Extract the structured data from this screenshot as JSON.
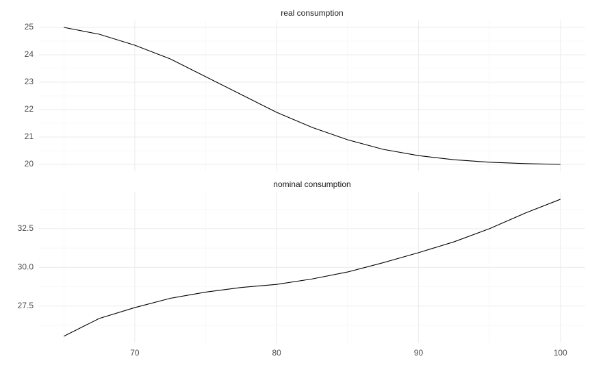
{
  "chart_data": [
    {
      "type": "line",
      "title": "real consumption",
      "x": [
        65,
        67.5,
        70,
        72.5,
        75,
        77.5,
        80,
        82.5,
        85,
        87.5,
        90,
        92.5,
        95,
        97.5,
        100
      ],
      "series": [
        {
          "color": "#000000",
          "values": [
            25.0,
            24.75,
            24.35,
            23.85,
            23.2,
            22.55,
            21.9,
            21.35,
            20.9,
            20.55,
            20.32,
            20.17,
            20.08,
            20.03,
            20.0
          ]
        }
      ],
      "xlim": [
        63.25,
        101.75
      ],
      "xticks": [
        70,
        80,
        90,
        100
      ],
      "xminor": [
        65,
        75,
        85,
        95
      ],
      "ylim": [
        19.75,
        25.25
      ],
      "yticks": [
        20,
        21,
        22,
        23,
        24,
        25
      ],
      "yminor": [
        20.5,
        21.5,
        22.5,
        23.5,
        24.5
      ],
      "grid": true
    },
    {
      "type": "line",
      "title": "nominal consumption",
      "x": [
        65,
        67.5,
        70,
        72.5,
        75,
        77.5,
        80,
        82.5,
        85,
        87.5,
        90,
        92.5,
        95,
        97.5,
        100
      ],
      "series": [
        {
          "color": "#000000",
          "values": [
            25.55,
            26.7,
            27.4,
            28.0,
            28.4,
            28.7,
            28.9,
            29.25,
            29.7,
            30.3,
            30.95,
            31.65,
            32.5,
            33.5,
            34.4
          ]
        }
      ],
      "xlim": [
        63.25,
        101.75
      ],
      "xticks": [
        70,
        80,
        90,
        100
      ],
      "xminor": [
        65,
        75,
        85,
        95
      ],
      "ylim": [
        25.1,
        34.84
      ],
      "yticks": [
        27.5,
        {
          "value": 30,
          "label": "30.0"
        },
        32.5
      ],
      "yminor": [
        26.25,
        28.75,
        31.25,
        33.75
      ],
      "grid": true
    }
  ]
}
